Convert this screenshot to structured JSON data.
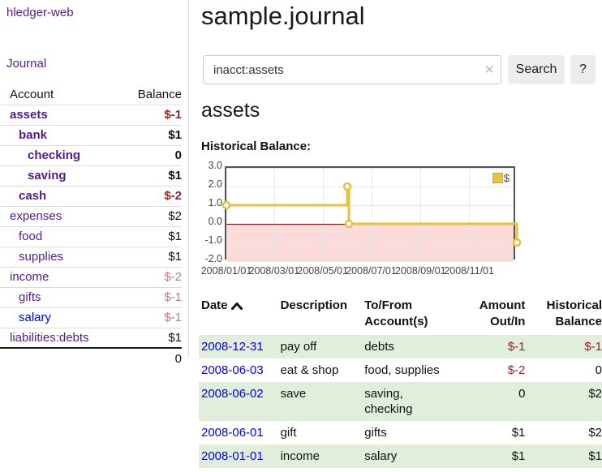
{
  "app": {
    "brand": "hledger-web",
    "nav_journal": "Journal"
  },
  "colors": {
    "link_purple": "#551A8B",
    "link_blue": "#0000EE",
    "negative_strong": "#9c2121",
    "negative_muted": "#b97f7f",
    "row_stripe_green": "#e0eedb",
    "chart_line_gold": "#e5c13d",
    "chart_negative_fill": "#fbdada",
    "chart_zero_line": "#a40000"
  },
  "sidebar": {
    "header": {
      "account": "Account",
      "balance": "Balance"
    },
    "accounts": [
      {
        "name": "assets",
        "balance": "$-1"
      },
      {
        "name": "bank",
        "balance": "$1"
      },
      {
        "name": "checking",
        "balance": "0"
      },
      {
        "name": "saving",
        "balance": "$1"
      },
      {
        "name": "cash",
        "balance": "$-2"
      },
      {
        "name": "expenses",
        "balance": "$2"
      },
      {
        "name": "food",
        "balance": "$1"
      },
      {
        "name": "supplies",
        "balance": "$1"
      },
      {
        "name": "income",
        "balance": "$-2"
      },
      {
        "name": "gifts",
        "balance": "$-1"
      },
      {
        "name": "salary",
        "balance": "$-1"
      },
      {
        "name": "liabilities:debts",
        "balance": "$1"
      }
    ],
    "total": "0"
  },
  "header": {
    "title": "sample.journal"
  },
  "search": {
    "value": "inacct:assets",
    "clear_icon": "×",
    "button_label": "Search",
    "help_label": "?"
  },
  "account_page": {
    "heading": "assets",
    "chart_label": "Historical Balance:"
  },
  "chart_data": {
    "type": "line",
    "step": true,
    "title": "Historical Balance",
    "series": [
      {
        "name": "$",
        "color": "#e5c13d",
        "points": [
          [
            "2008-01-01",
            1
          ],
          [
            "2008-06-01",
            2
          ],
          [
            "2008-06-03",
            0
          ],
          [
            "2008-12-31",
            -1
          ]
        ]
      }
    ],
    "x_ticks": [
      "2008/01/01",
      "2008/03/01",
      "2008/05/01",
      "2008/07/01",
      "2008/09/01",
      "2008/11/01"
    ],
    "y_ticks": [
      "3.0",
      "2.0",
      "1.0",
      "0.0",
      "-1.0",
      "-2.0"
    ],
    "ylim": [
      -2,
      3
    ],
    "xlim": [
      "2008-01-01",
      "2008-12-31"
    ],
    "grid": true,
    "legend": "$",
    "legend_position": "top-right"
  },
  "register": {
    "columns": {
      "date": "Date",
      "description": "Description",
      "account_line1": "To/From",
      "account_line2": "Account(s)",
      "amount_line1": "Amount",
      "amount_line2": "Out/In",
      "hist_line1": "Historical",
      "hist_line2": "Balance"
    },
    "rows": [
      {
        "date": "2008-12-31",
        "description": "pay off",
        "accounts": "debts",
        "amount": "$-1",
        "balance": "$-1"
      },
      {
        "date": "2008-06-03",
        "description": "eat & shop",
        "accounts": "food, supplies",
        "amount": "$-2",
        "balance": "0"
      },
      {
        "date": "2008-06-02",
        "description": "save",
        "accounts": "saving, checking",
        "amount": "0",
        "balance": "$2"
      },
      {
        "date": "2008-06-01",
        "description": "gift",
        "accounts": "gifts",
        "amount": "$1",
        "balance": "$2"
      },
      {
        "date": "2008-01-01",
        "description": "income",
        "accounts": "salary",
        "amount": "$1",
        "balance": "$1"
      }
    ]
  }
}
